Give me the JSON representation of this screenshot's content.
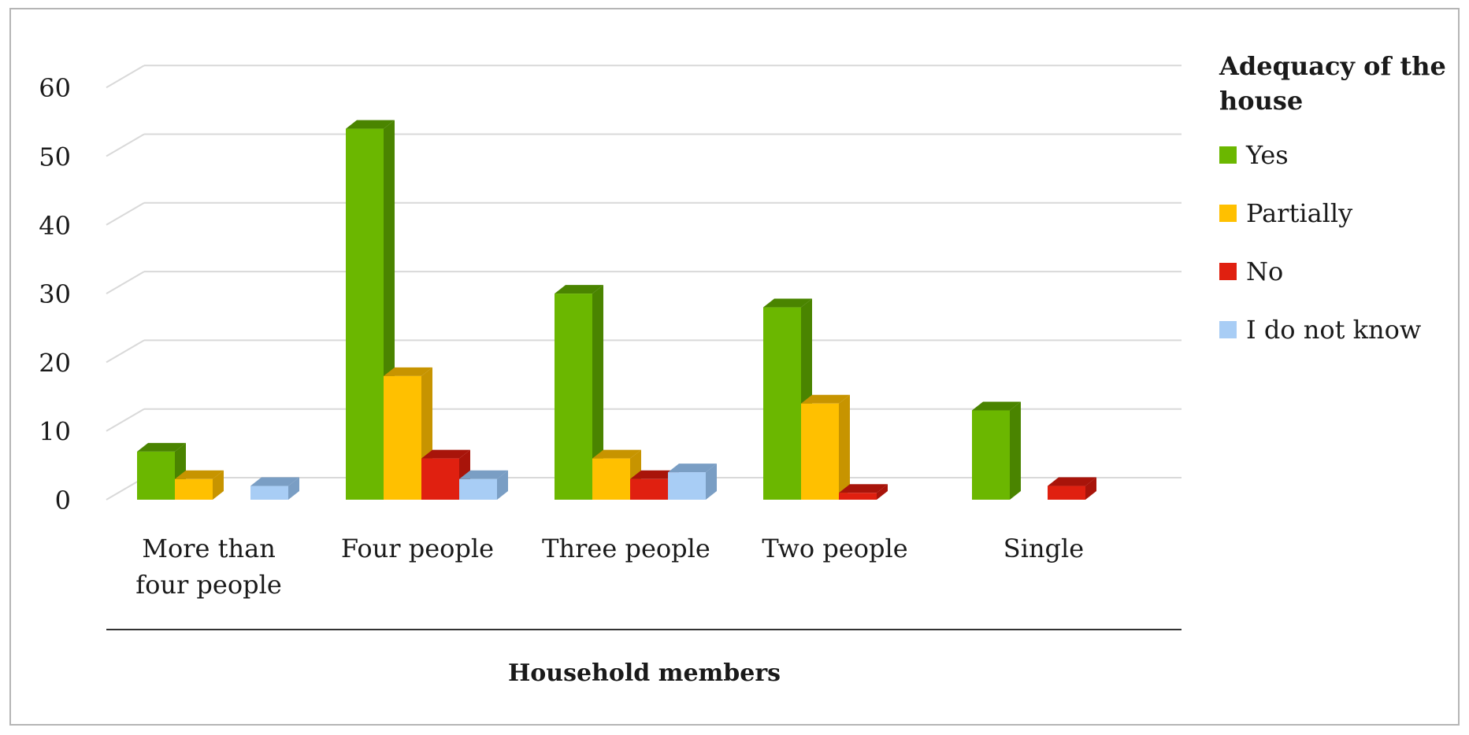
{
  "chart_data": {
    "type": "bar",
    "style": "3d-clustered-column",
    "categories": [
      [
        "More than",
        "four people"
      ],
      [
        "Four people"
      ],
      [
        "Three people"
      ],
      [
        "Two people"
      ],
      [
        "Single"
      ]
    ],
    "series": [
      {
        "name": "Yes",
        "color": "#6bb700",
        "side_color": "#4a8400",
        "values": [
          7,
          54,
          30,
          28,
          13
        ]
      },
      {
        "name": "Partially",
        "color": "#ffc000",
        "side_color": "#c79400",
        "values": [
          3,
          18,
          6,
          14,
          0
        ]
      },
      {
        "name": "No",
        "color": "#e02010",
        "side_color": "#a8140a",
        "values": [
          0,
          6,
          3,
          1,
          2
        ]
      },
      {
        "name": "I do not know",
        "color": "#a8cdf5",
        "side_color": "#7a9ec4",
        "values": [
          2,
          3,
          4,
          0,
          0
        ]
      }
    ],
    "yticks": [
      0,
      10,
      20,
      30,
      40,
      50,
      60
    ],
    "ylim": [
      0,
      60
    ],
    "xlabel": "Household members",
    "ylabel": "",
    "legend": {
      "title": [
        "Adequacy of the",
        "house"
      ],
      "position": "right"
    },
    "grid": true
  }
}
